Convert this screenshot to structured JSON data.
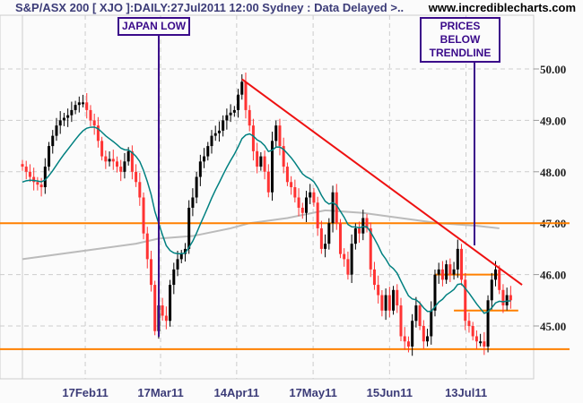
{
  "header": {
    "title": "S&P/ASX 200 [ XJO ]:DAILY:27Jul2011 12:00 Sydney : Data Delayed >..",
    "site": "www.incrediblecharts.com"
  },
  "annotations": [
    {
      "text": "JAPAN LOW"
    },
    {
      "text": "PRICES BELOW TRENDLINE"
    }
  ],
  "chart_data": {
    "type": "candlestick",
    "title": "S&P/ASX 200 [ XJO ]:DAILY:27Jul2011 12:00 Sydney : Data Delayed >..",
    "ylim": [
      44,
      50.4
    ],
    "yticks": [
      "45.00",
      "46.00",
      "47.00",
      "48.00",
      "49.00",
      "50.00"
    ],
    "xticks": [
      "17Feb11",
      "17Mar11",
      "14Apr11",
      "17May11",
      "15Jun11",
      "13Jul11"
    ],
    "grid": true,
    "closes": [
      48.1,
      48.0,
      47.9,
      47.8,
      47.75,
      47.7,
      48.1,
      48.5,
      48.7,
      48.9,
      49.0,
      49.05,
      49.1,
      49.2,
      49.3,
      49.35,
      49.35,
      49.2,
      49.0,
      48.9,
      48.6,
      48.3,
      48.2,
      48.25,
      48.2,
      48.1,
      48.0,
      48.2,
      48.4,
      48.0,
      47.8,
      47.5,
      46.8,
      46.3,
      45.8,
      44.9,
      45.4,
      45.2,
      45.1,
      45.8,
      46.1,
      46.3,
      46.4,
      46.5,
      47.3,
      47.5,
      47.9,
      48.2,
      48.3,
      48.5,
      48.7,
      48.75,
      48.8,
      49.0,
      49.1,
      49.15,
      49.2,
      49.5,
      49.75,
      49.2,
      48.9,
      48.4,
      48.1,
      48.3,
      48.0,
      47.6,
      48.6,
      48.9,
      48.5,
      48.1,
      47.8,
      47.7,
      47.5,
      47.3,
      47.2,
      47.5,
      47.6,
      47.4,
      46.9,
      46.5,
      46.6,
      47.0,
      47.6,
      47.0,
      46.4,
      46.3,
      46.0,
      46.6,
      46.9,
      46.8,
      47.1,
      46.9,
      46.1,
      45.8,
      45.6,
      45.3,
      45.6,
      45.3,
      45.7,
      45.4,
      44.8,
      44.7,
      44.6,
      45.1,
      45.4,
      45.0,
      44.7,
      44.8,
      45.3,
      46.0,
      46.1,
      45.9,
      46.2,
      46.0,
      46.1,
      46.5,
      45.9,
      45.1,
      45.0,
      44.8,
      44.7,
      44.7,
      44.6,
      45.5,
      45.9,
      46.1,
      45.7,
      45.4,
      45.6,
      45.5
    ],
    "moving_average_slow": [
      [
        0,
        46.3
      ],
      [
        10,
        46.4
      ],
      [
        20,
        46.5
      ],
      [
        30,
        46.6
      ],
      [
        36,
        46.7
      ],
      [
        45,
        46.75
      ],
      [
        55,
        46.9
      ],
      [
        60,
        47.0
      ],
      [
        70,
        47.1
      ],
      [
        80,
        47.25
      ],
      [
        90,
        47.2
      ],
      [
        100,
        47.1
      ],
      [
        110,
        47.0
      ],
      [
        120,
        46.95
      ],
      [
        126,
        46.9
      ]
    ],
    "horizontal_lines": [
      {
        "price": 47.0,
        "color": "#ff8000"
      },
      {
        "price": 44.55,
        "color": "#ff8000"
      },
      {
        "price": 46.0,
        "color": "#ff8000",
        "from_index": 109,
        "to_index": 126
      },
      {
        "price": 45.3,
        "color": "#ff8000",
        "from_index": 114,
        "to_index": 131
      }
    ],
    "trendline": {
      "from": [
        58,
        49.8
      ],
      "to": [
        132,
        45.8
      ],
      "color": "#ee1111"
    },
    "colors": {
      "up": "#000000",
      "down": "#ff3333",
      "fast_ma": "#008080",
      "slow_ma": "#bbbbbb",
      "annotation": "#3a0a8a"
    }
  }
}
